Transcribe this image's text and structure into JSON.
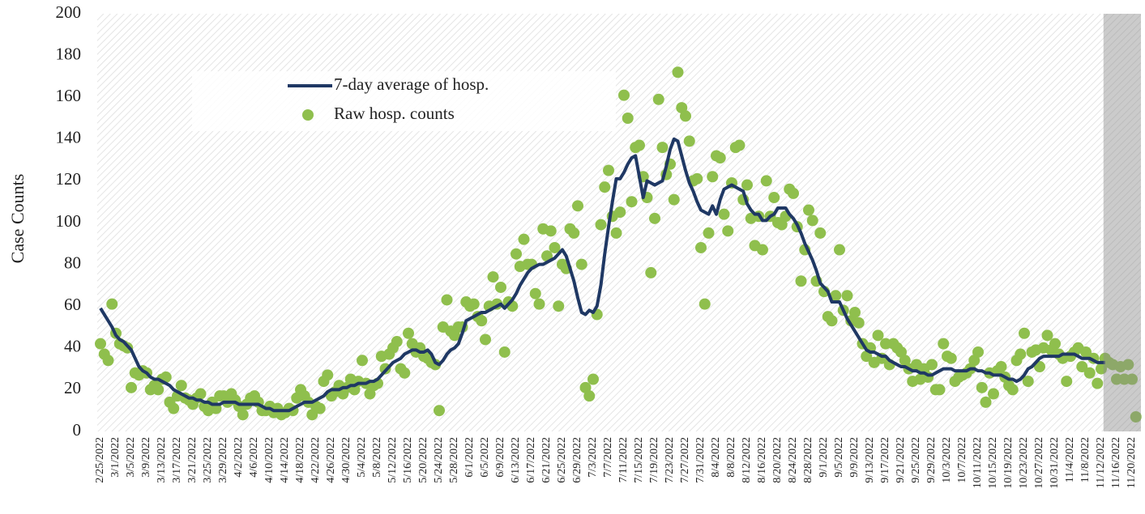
{
  "chart_data": {
    "type": "line_scatter",
    "ylabel": "Case Counts",
    "categories": [
      "2/25/2022",
      null,
      null,
      null,
      "3/1/2022",
      null,
      null,
      null,
      "3/5/2022",
      null,
      null,
      null,
      "3/9/2022",
      null,
      null,
      null,
      "3/13/2022",
      null,
      null,
      null,
      "3/17/2022",
      null,
      null,
      null,
      "3/21/2022",
      null,
      null,
      null,
      "3/25/2022",
      null,
      null,
      null,
      "3/29/2022",
      null,
      null,
      null,
      "4/2/2022",
      null,
      null,
      null,
      "4/6/2022",
      null,
      null,
      null,
      "4/10/2022",
      null,
      null,
      null,
      "4/14/2022",
      null,
      null,
      null,
      "4/18/2022",
      null,
      null,
      null,
      "4/22/2022",
      null,
      null,
      null,
      "4/26/2022",
      null,
      null,
      null,
      "4/30/2022",
      null,
      null,
      null,
      "5/4/2022",
      null,
      null,
      null,
      "5/8/2022",
      null,
      null,
      null,
      "5/12/2022",
      null,
      null,
      null,
      "5/16/2022",
      null,
      null,
      null,
      "5/20/2022",
      null,
      null,
      null,
      "5/24/2022",
      null,
      null,
      null,
      "5/28/2022",
      null,
      null,
      null,
      "6/1/2022",
      null,
      null,
      null,
      "6/5/2022",
      null,
      null,
      null,
      "6/9/2022",
      null,
      null,
      null,
      "6/13/2022",
      null,
      null,
      null,
      "6/17/2022",
      null,
      null,
      null,
      "6/21/2022",
      null,
      null,
      null,
      "6/25/2022",
      null,
      null,
      null,
      "6/29/2022",
      null,
      null,
      null,
      "7/3/2022",
      null,
      null,
      null,
      "7/7/2022",
      null,
      null,
      null,
      "7/11/2022",
      null,
      null,
      null,
      "7/15/2022",
      null,
      null,
      null,
      "7/19/2022",
      null,
      null,
      null,
      "7/23/2022",
      null,
      null,
      null,
      "7/27/2022",
      null,
      null,
      null,
      "7/31/2022",
      null,
      null,
      null,
      "8/4/2022",
      null,
      null,
      null,
      "8/8/2022",
      null,
      null,
      null,
      "8/12/2022",
      null,
      null,
      null,
      "8/16/2022",
      null,
      null,
      null,
      "8/20/2022",
      null,
      null,
      null,
      "8/24/2022",
      null,
      null,
      null,
      "8/28/2022",
      null,
      null,
      null,
      "9/1/2022",
      null,
      null,
      null,
      "9/5/2022",
      null,
      null,
      null,
      "9/9/2022",
      null,
      null,
      null,
      "9/13/2022",
      null,
      null,
      null,
      "9/17/2022",
      null,
      null,
      null,
      "9/21/2022",
      null,
      null,
      null,
      "9/25/2022",
      null,
      null,
      null,
      "9/29/2022",
      null,
      null,
      null,
      "10/3/2022",
      null,
      null,
      null,
      "10/7/2022",
      null,
      null,
      null,
      "10/11/2022",
      null,
      null,
      null,
      "10/15/2022",
      null,
      null,
      null,
      "10/19/2022",
      null,
      null,
      null,
      "10/23/2022",
      null,
      null,
      null,
      "10/27/2022",
      null,
      null,
      null,
      "10/31/2022",
      null,
      null,
      null,
      "11/4/2022",
      null,
      null,
      null,
      "11/8/2022",
      null,
      null,
      null,
      "11/12/2022",
      null,
      null,
      null,
      "11/16/2022",
      null,
      null,
      null,
      "11/20/2022",
      null
    ],
    "series": [
      {
        "name": "7-day average of hosp.",
        "type": "line",
        "color": "#1f3864",
        "values": [
          59,
          56,
          53,
          50,
          46,
          44,
          43,
          41,
          39,
          35,
          31,
          29,
          28,
          26,
          25,
          25,
          24,
          23,
          22,
          20,
          19,
          18,
          17,
          16,
          16,
          15,
          15,
          14,
          14,
          13,
          13,
          13,
          14,
          14,
          14,
          14,
          13,
          13,
          13,
          13,
          13,
          13,
          12,
          11,
          11,
          10,
          10,
          10,
          10,
          10,
          11,
          12,
          13,
          14,
          14,
          14,
          15,
          16,
          17,
          19,
          20,
          20,
          20,
          21,
          21,
          22,
          22,
          23,
          23,
          23,
          24,
          24,
          25,
          27,
          29,
          31,
          33,
          34,
          35,
          37,
          38,
          39,
          39,
          38,
          38,
          39,
          37,
          33,
          32,
          34,
          37,
          39,
          40,
          42,
          47,
          53,
          54,
          55,
          56,
          57,
          57,
          58,
          59,
          60,
          61,
          59,
          61,
          63,
          66,
          70,
          73,
          76,
          78,
          79,
          80,
          80,
          81,
          82,
          83,
          85,
          87,
          84,
          78,
          72,
          64,
          57,
          56,
          58,
          57,
          60,
          70,
          85,
          98,
          110,
          121,
          121,
          124,
          128,
          131,
          132,
          122,
          112,
          120,
          119,
          118,
          119,
          120,
          127,
          135,
          140,
          139,
          132,
          125,
          119,
          115,
          110,
          106,
          105,
          104,
          108,
          104,
          111,
          116,
          117,
          118,
          117,
          116,
          115,
          109,
          106,
          104,
          104,
          101,
          101,
          103,
          104,
          107,
          107,
          107,
          104,
          102,
          99,
          95,
          90,
          86,
          82,
          77,
          71,
          69,
          67,
          62,
          62,
          62,
          58,
          54,
          51,
          48,
          45,
          42,
          39,
          38,
          38,
          37,
          36,
          36,
          34,
          33,
          32,
          31,
          31,
          30,
          29,
          29,
          28,
          28,
          27,
          27,
          28,
          29,
          30,
          30,
          30,
          29,
          29,
          29,
          29,
          30,
          30,
          29,
          29,
          28,
          28,
          27,
          27,
          27,
          26,
          25,
          25,
          24,
          25,
          27,
          30,
          31,
          33,
          35,
          36,
          36,
          36,
          36,
          36,
          37,
          37,
          37,
          37,
          36,
          35,
          35,
          35,
          34,
          33,
          33,
          33,
          null,
          null,
          null,
          null,
          null,
          null,
          null,
          null
        ]
      },
      {
        "name": "Raw hosp. counts",
        "type": "scatter",
        "color": "#8fbf4d",
        "values": [
          42,
          37,
          34,
          61,
          47,
          42,
          41,
          40,
          21,
          28,
          27,
          29,
          28,
          20,
          22,
          20,
          25,
          26,
          14,
          11,
          17,
          22,
          16,
          15,
          13,
          16,
          18,
          12,
          10,
          14,
          11,
          17,
          17,
          14,
          18,
          15,
          12,
          8,
          13,
          16,
          17,
          14,
          10,
          10,
          12,
          9,
          11,
          8,
          9,
          11,
          10,
          16,
          20,
          17,
          14,
          8,
          12,
          11,
          24,
          27,
          17,
          19,
          22,
          18,
          21,
          25,
          20,
          24,
          34,
          23,
          18,
          22,
          23,
          36,
          30,
          37,
          40,
          43,
          30,
          28,
          47,
          42,
          38,
          40,
          36,
          35,
          33,
          32,
          10,
          50,
          63,
          48,
          46,
          50,
          50,
          62,
          60,
          61,
          55,
          53,
          44,
          60,
          74,
          61,
          69,
          38,
          62,
          60,
          85,
          79,
          92,
          80,
          80,
          66,
          61,
          97,
          84,
          96,
          88,
          60,
          80,
          78,
          97,
          95,
          108,
          80,
          21,
          17,
          25,
          56,
          99,
          117,
          125,
          103,
          95,
          105,
          161,
          150,
          110,
          136,
          137,
          122,
          112,
          76,
          102,
          159,
          136,
          123,
          128,
          111,
          172,
          155,
          151,
          139,
          120,
          121,
          88,
          61,
          95,
          122,
          132,
          131,
          104,
          96,
          119,
          136,
          137,
          111,
          118,
          102,
          89,
          103,
          87,
          120,
          103,
          112,
          100,
          99,
          103,
          116,
          114,
          98,
          72,
          87,
          106,
          101,
          72,
          95,
          67,
          55,
          53,
          65,
          87,
          58,
          65,
          53,
          57,
          52,
          42,
          36,
          40,
          33,
          46,
          35,
          42,
          32,
          42,
          40,
          38,
          34,
          30,
          24,
          32,
          25,
          30,
          26,
          32,
          20,
          20,
          42,
          36,
          35,
          24,
          26,
          27,
          28,
          30,
          34,
          38,
          21,
          14,
          28,
          18,
          29,
          31,
          26,
          22,
          20,
          34,
          37,
          47,
          24,
          38,
          39,
          31,
          40,
          46,
          39,
          42,
          37,
          35,
          24,
          36,
          38,
          40,
          31,
          38,
          28,
          35,
          23,
          30,
          35,
          33,
          32,
          25,
          31,
          25,
          32,
          25,
          7
        ]
      }
    ],
    "ylim": [
      0,
      200
    ],
    "yticks": [
      0,
      20,
      40,
      60,
      80,
      100,
      120,
      140,
      160,
      180,
      200
    ],
    "grid": false,
    "legend": "upper left",
    "shaded_from_index": 261
  }
}
